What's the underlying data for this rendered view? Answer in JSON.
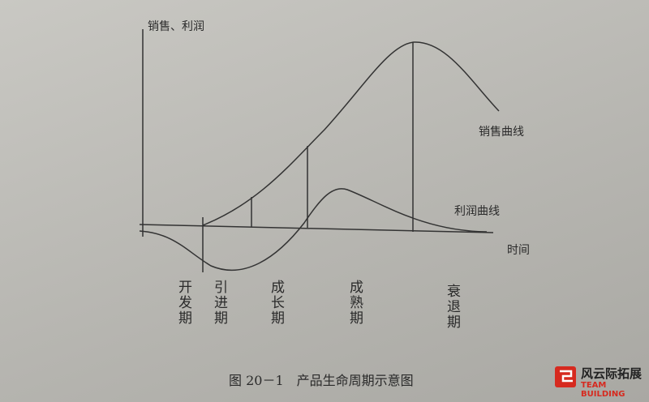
{
  "diagram": {
    "y_axis_label": "销售、利润",
    "x_axis_label": "时间",
    "curves": [
      {
        "label": "销售曲线"
      },
      {
        "label": "利润曲线"
      }
    ],
    "stages": [
      "开发期",
      "引进期",
      "成长期",
      "成熟期",
      "衰退期"
    ],
    "caption": "图 20－1　产品生命周期示意图"
  },
  "logo": {
    "name": "风云际拓展",
    "subtitle": "TEAM BUILDING"
  }
}
